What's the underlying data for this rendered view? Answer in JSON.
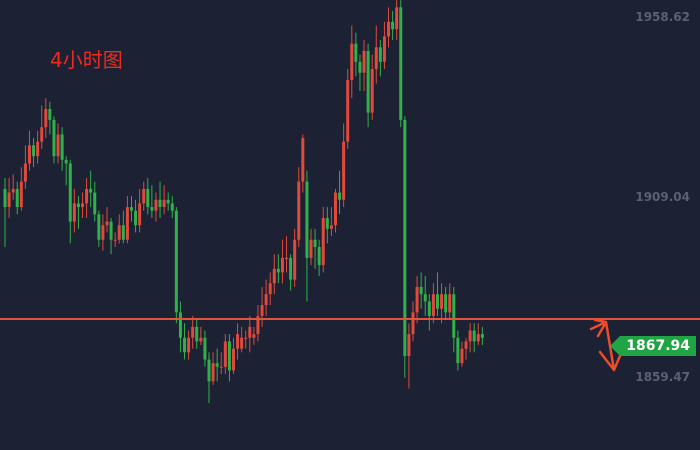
{
  "chart_data": {
    "type": "candlestick",
    "title": "4小时图",
    "y_axis_labels": [
      "1958.62",
      "1909.04",
      "1859.47"
    ],
    "current_price": "1867.94",
    "colors": {
      "background": "#1c2133",
      "up": "#e04a3c",
      "down": "#2fb24c",
      "horizontal_line": "#e0543c",
      "arrow": "#ee4b2b",
      "price_tag": "#21a443",
      "title": "#f02a1d",
      "axis_text": "#5b6172"
    },
    "candles": [
      [
        1911,
        1906,
        1914,
        1895
      ],
      [
        1906,
        1910,
        1914,
        1903
      ],
      [
        1910,
        1911,
        1915,
        1908
      ],
      [
        1911,
        1906,
        1913,
        1904
      ],
      [
        1906,
        1913,
        1917,
        1905
      ],
      [
        1913,
        1918,
        1923,
        1911
      ],
      [
        1918,
        1923,
        1927,
        1916
      ],
      [
        1923,
        1920,
        1925,
        1917
      ],
      [
        1920,
        1924,
        1927,
        1918
      ],
      [
        1924,
        1928,
        1934,
        1922
      ],
      [
        1928,
        1933,
        1936,
        1925
      ],
      [
        1933,
        1930,
        1935,
        1926
      ],
      [
        1930,
        1920,
        1931,
        1918
      ],
      [
        1920,
        1926,
        1929,
        1918
      ],
      [
        1926,
        1919,
        1928,
        1916
      ],
      [
        1919,
        1918,
        1920,
        1912
      ],
      [
        1918,
        1902,
        1919,
        1896
      ],
      [
        1902,
        1907,
        1911,
        1899
      ],
      [
        1907,
        1906,
        1909,
        1900
      ],
      [
        1906,
        1907,
        1910,
        1903
      ],
      [
        1907,
        1911,
        1914,
        1903
      ],
      [
        1911,
        1910,
        1916,
        1906
      ],
      [
        1910,
        1904,
        1913,
        1902
      ],
      [
        1904,
        1897,
        1905,
        1895
      ],
      [
        1897,
        1901,
        1904,
        1894
      ],
      [
        1901,
        1902,
        1906,
        1899
      ],
      [
        1902,
        1897,
        1903,
        1893
      ],
      [
        1897,
        1897,
        1899,
        1895
      ],
      [
        1897,
        1901,
        1904,
        1896
      ],
      [
        1901,
        1897,
        1905,
        1896
      ],
      [
        1897,
        1906,
        1909,
        1896
      ],
      [
        1906,
        1905,
        1909,
        1902
      ],
      [
        1905,
        1901,
        1908,
        1899
      ],
      [
        1901,
        1907,
        1911,
        1899
      ],
      [
        1907,
        1911,
        1913,
        1905
      ],
      [
        1911,
        1906,
        1914,
        1904
      ],
      [
        1906,
        1905,
        1912,
        1903
      ],
      [
        1905,
        1908,
        1910,
        1902
      ],
      [
        1908,
        1906,
        1913,
        1903
      ],
      [
        1906,
        1908,
        1912,
        1904
      ],
      [
        1908,
        1907,
        1910,
        1905
      ],
      [
        1907,
        1905,
        1909,
        1903
      ],
      [
        1905,
        1877,
        1906,
        1874
      ],
      [
        1877,
        1870,
        1880,
        1866
      ],
      [
        1870,
        1866,
        1874,
        1864
      ],
      [
        1866,
        1870,
        1872,
        1864
      ],
      [
        1870,
        1873,
        1876,
        1867
      ],
      [
        1873,
        1869,
        1875,
        1867
      ],
      [
        1869,
        1870,
        1873,
        1868
      ],
      [
        1870,
        1864,
        1872,
        1862
      ],
      [
        1864,
        1858,
        1866,
        1852
      ],
      [
        1858,
        1863,
        1866,
        1857
      ],
      [
        1863,
        1862,
        1867,
        1858
      ],
      [
        1862,
        1862,
        1866,
        1860
      ],
      [
        1862,
        1869,
        1871,
        1860
      ],
      [
        1869,
        1861,
        1871,
        1858
      ],
      [
        1861,
        1867,
        1870,
        1860
      ],
      [
        1867,
        1871,
        1874,
        1864
      ],
      [
        1867,
        1870,
        1873,
        1866
      ],
      [
        1870,
        1870,
        1872,
        1867
      ],
      [
        1870,
        1873,
        1876,
        1866
      ],
      [
        1870,
        1871,
        1873,
        1868
      ],
      [
        1871,
        1876,
        1879,
        1869
      ],
      [
        1876,
        1879,
        1884,
        1873
      ],
      [
        1879,
        1882,
        1886,
        1876
      ],
      [
        1882,
        1885,
        1888,
        1879
      ],
      [
        1885,
        1889,
        1893,
        1882
      ],
      [
        1889,
        1888,
        1893,
        1885
      ],
      [
        1888,
        1892,
        1897,
        1885
      ],
      [
        1892,
        1892,
        1898,
        1888
      ],
      [
        1892,
        1886,
        1893,
        1883
      ],
      [
        1886,
        1897,
        1900,
        1884
      ],
      [
        1897,
        1913,
        1917,
        1895
      ],
      [
        1913,
        1925,
        1926,
        1910
      ],
      [
        1913,
        1892,
        1916,
        1880
      ],
      [
        1892,
        1897,
        1900,
        1890
      ],
      [
        1897,
        1895,
        1900,
        1889
      ],
      [
        1895,
        1890,
        1897,
        1887
      ],
      [
        1890,
        1903,
        1906,
        1888
      ],
      [
        1903,
        1900,
        1906,
        1896
      ],
      [
        1900,
        1901,
        1906,
        1898
      ],
      [
        1901,
        1910,
        1911,
        1899
      ],
      [
        1910,
        1908,
        1916,
        1904
      ],
      [
        1908,
        1924,
        1929,
        1906
      ],
      [
        1924,
        1941,
        1944,
        1922
      ],
      [
        1941,
        1951,
        1956,
        1936
      ],
      [
        1951,
        1946,
        1954,
        1942
      ],
      [
        1946,
        1943,
        1948,
        1938
      ],
      [
        1943,
        1949,
        1952,
        1938
      ],
      [
        1949,
        1932,
        1951,
        1928
      ],
      [
        1932,
        1944,
        1948,
        1930
      ],
      [
        1944,
        1950,
        1956,
        1940
      ],
      [
        1950,
        1946,
        1952,
        1942
      ],
      [
        1946,
        1953,
        1957,
        1944
      ],
      [
        1953,
        1957,
        1961,
        1950
      ],
      [
        1957,
        1955,
        1960,
        1952
      ],
      [
        1955,
        1961,
        1963,
        1952
      ],
      [
        1961,
        1930,
        1963,
        1928
      ],
      [
        1930,
        1865,
        1931,
        1859
      ],
      [
        1865,
        1871,
        1874,
        1856
      ],
      [
        1871,
        1877,
        1880,
        1869
      ],
      [
        1877,
        1884,
        1887,
        1874
      ],
      [
        1884,
        1882,
        1888,
        1878
      ],
      [
        1882,
        1880,
        1887,
        1876
      ],
      [
        1880,
        1876,
        1882,
        1872
      ],
      [
        1876,
        1882,
        1885,
        1874
      ],
      [
        1882,
        1878,
        1888,
        1876
      ],
      [
        1878,
        1882,
        1885,
        1874
      ],
      [
        1882,
        1877,
        1884,
        1875
      ],
      [
        1877,
        1882,
        1885,
        1875
      ],
      [
        1882,
        1870,
        1884,
        1866
      ],
      [
        1870,
        1863,
        1872,
        1861
      ],
      [
        1863,
        1867,
        1869,
        1862
      ],
      [
        1867,
        1869,
        1870,
        1864
      ],
      [
        1869,
        1872,
        1874,
        1866
      ],
      [
        1872,
        1869,
        1874,
        1866
      ],
      [
        1869,
        1871,
        1874,
        1868
      ],
      [
        1871,
        1870,
        1873,
        1868
      ]
    ]
  }
}
